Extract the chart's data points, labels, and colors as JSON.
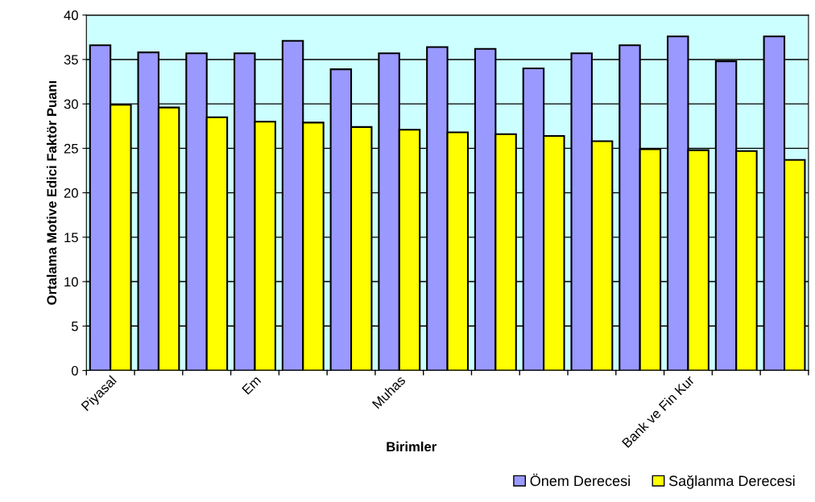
{
  "chart_data": {
    "type": "bar",
    "xlabel": "Birimler",
    "ylabel": "Ortalama Motive Edici Faktör Puanı",
    "categories": [
      "Piyasal",
      null,
      null,
      "Em",
      null,
      null,
      "Muhas",
      null,
      null,
      null,
      null,
      null,
      "Bank ve Fin Kur",
      null,
      null
    ],
    "series": [
      {
        "name": "Önem Derecesi",
        "color": "#9999ff",
        "values": [
          36.6,
          35.8,
          35.7,
          35.7,
          37.1,
          33.9,
          35.7,
          36.4,
          36.2,
          34.0,
          35.7,
          36.6,
          37.6,
          34.8,
          37.6
        ]
      },
      {
        "name": "Sağlanma Derecesi",
        "color": "#ffff00",
        "values": [
          29.9,
          29.6,
          28.5,
          28.0,
          27.9,
          27.4,
          27.1,
          26.8,
          26.6,
          26.4,
          25.8,
          24.9,
          24.8,
          24.7,
          23.7
        ]
      }
    ],
    "ylim": [
      0,
      40
    ],
    "yticks": [
      0,
      5,
      10,
      15,
      20,
      25,
      30,
      35,
      40
    ],
    "grid": "y",
    "legend": "bottom right"
  }
}
